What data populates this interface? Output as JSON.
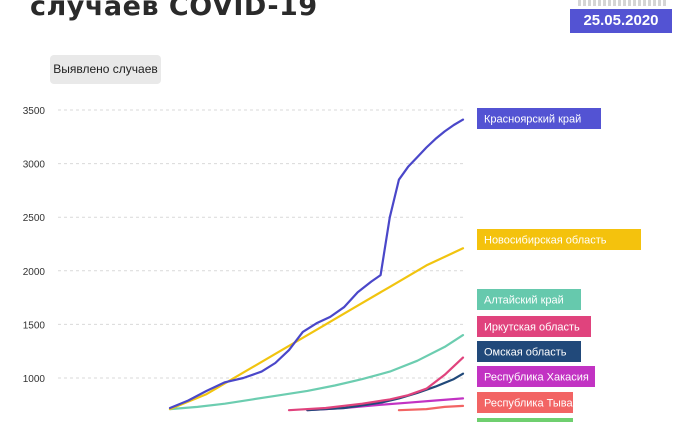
{
  "header": {
    "title": "случаев COVID-19",
    "date": "25.05.2020"
  },
  "chart_data": {
    "type": "line",
    "ylabel": "Выявлено случаев",
    "yticks": [
      1000,
      1500,
      2000,
      2500,
      3000,
      3500
    ],
    "ylim": [
      700,
      3600
    ],
    "grid": true,
    "series": [
      {
        "name": "Красноярский край",
        "color": "#4a47c9",
        "x": [
          0,
          4,
          8,
          12,
          16,
          20,
          23,
          26,
          29,
          32,
          35,
          38,
          41,
          44,
          46,
          48,
          50,
          52,
          54,
          56,
          58,
          60,
          62,
          64
        ],
        "values": [
          720,
          790,
          880,
          960,
          1000,
          1060,
          1140,
          1260,
          1430,
          1510,
          1570,
          1660,
          1800,
          1900,
          1960,
          2500,
          2850,
          2970,
          3060,
          3150,
          3230,
          3300,
          3360,
          3410
        ]
      },
      {
        "name": "Новосибирская область",
        "color": "#f1c40f",
        "x": [
          0,
          8,
          16,
          24,
          32,
          40,
          48,
          56,
          64
        ],
        "values": [
          710,
          850,
          1050,
          1250,
          1450,
          1650,
          1850,
          2050,
          2210
        ]
      },
      {
        "name": "Алтайский край",
        "color": "#6ccdb0",
        "x": [
          0,
          6,
          12,
          18,
          24,
          30,
          36,
          42,
          48,
          54,
          60,
          64
        ],
        "values": [
          710,
          730,
          760,
          800,
          840,
          880,
          930,
          990,
          1060,
          1160,
          1290,
          1400
        ]
      },
      {
        "name": "Иркутская область",
        "color": "#e0437d",
        "x": [
          26,
          34,
          42,
          48,
          52,
          56,
          60,
          64
        ],
        "values": [
          700,
          720,
          760,
          800,
          840,
          900,
          1030,
          1190
        ]
      },
      {
        "name": "Омская область",
        "color": "#21497a",
        "x": [
          30,
          38,
          46,
          50,
          54,
          58,
          62,
          64
        ],
        "values": [
          700,
          720,
          770,
          810,
          860,
          920,
          990,
          1040
        ]
      },
      {
        "name": "Республика Хакасия",
        "color": "#c233c3",
        "x": [
          30,
          38,
          46,
          52,
          58,
          64
        ],
        "values": [
          700,
          720,
          750,
          770,
          790,
          810
        ]
      },
      {
        "name": "Республика Тыва",
        "color": "#f26464",
        "x": [
          50,
          56,
          60,
          64
        ],
        "values": [
          700,
          710,
          730,
          740
        ]
      }
    ],
    "legend": [
      {
        "name": "Красноярский край",
        "color": "#5353d3"
      },
      {
        "name": "Новосибирская область",
        "color": "#f4c20d"
      },
      {
        "name": "Алтайский край",
        "color": "#66c9ad"
      },
      {
        "name": "Иркутская область",
        "color": "#e0437d"
      },
      {
        "name": "Омская область",
        "color": "#21497a"
      },
      {
        "name": "Республика Хакасия",
        "color": "#c233c3"
      },
      {
        "name": "Республика Тыва",
        "color": "#f26464"
      },
      {
        "name": "",
        "color": "#6fcf6f"
      }
    ]
  }
}
